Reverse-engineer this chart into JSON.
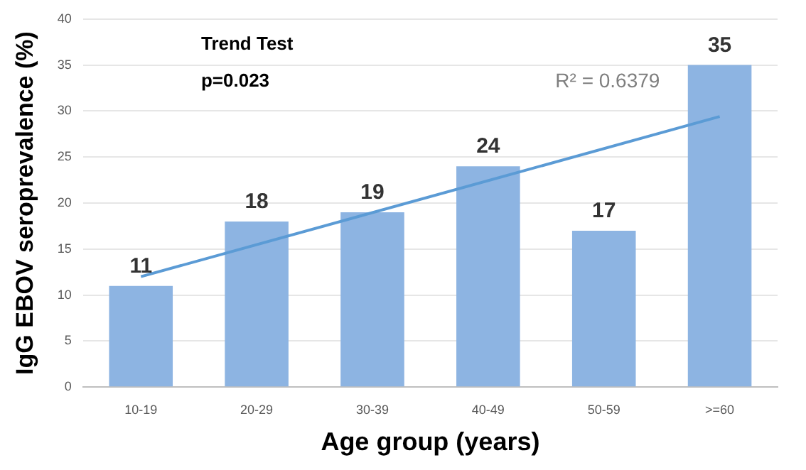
{
  "chart_data": {
    "type": "bar",
    "xlabel": "Age group (years)",
    "ylabel": "IgG EBOV seroprevalence (%)",
    "categories": [
      "10-19",
      "20-29",
      "30-39",
      "40-49",
      "50-59",
      ">=60"
    ],
    "series": [
      {
        "color": "#8db4e2",
        "values": [
          11,
          18,
          19,
          24,
          17,
          35
        ],
        "value_labels": [
          "11",
          "18",
          "19",
          "24",
          "17",
          "35"
        ]
      },
      {
        "type": "line",
        "color": "#5b9bd5",
        "x": [
          "10-19",
          ">=60"
        ],
        "values": [
          12,
          29.4
        ]
      }
    ],
    "ylim": [
      0,
      40
    ],
    "yticks": [
      0,
      5,
      10,
      15,
      20,
      25,
      30,
      35,
      40
    ],
    "grid": "y",
    "legend": false,
    "annotations": [
      "Trend Test",
      "p=0.023",
      "R² = 0.6379"
    ]
  }
}
